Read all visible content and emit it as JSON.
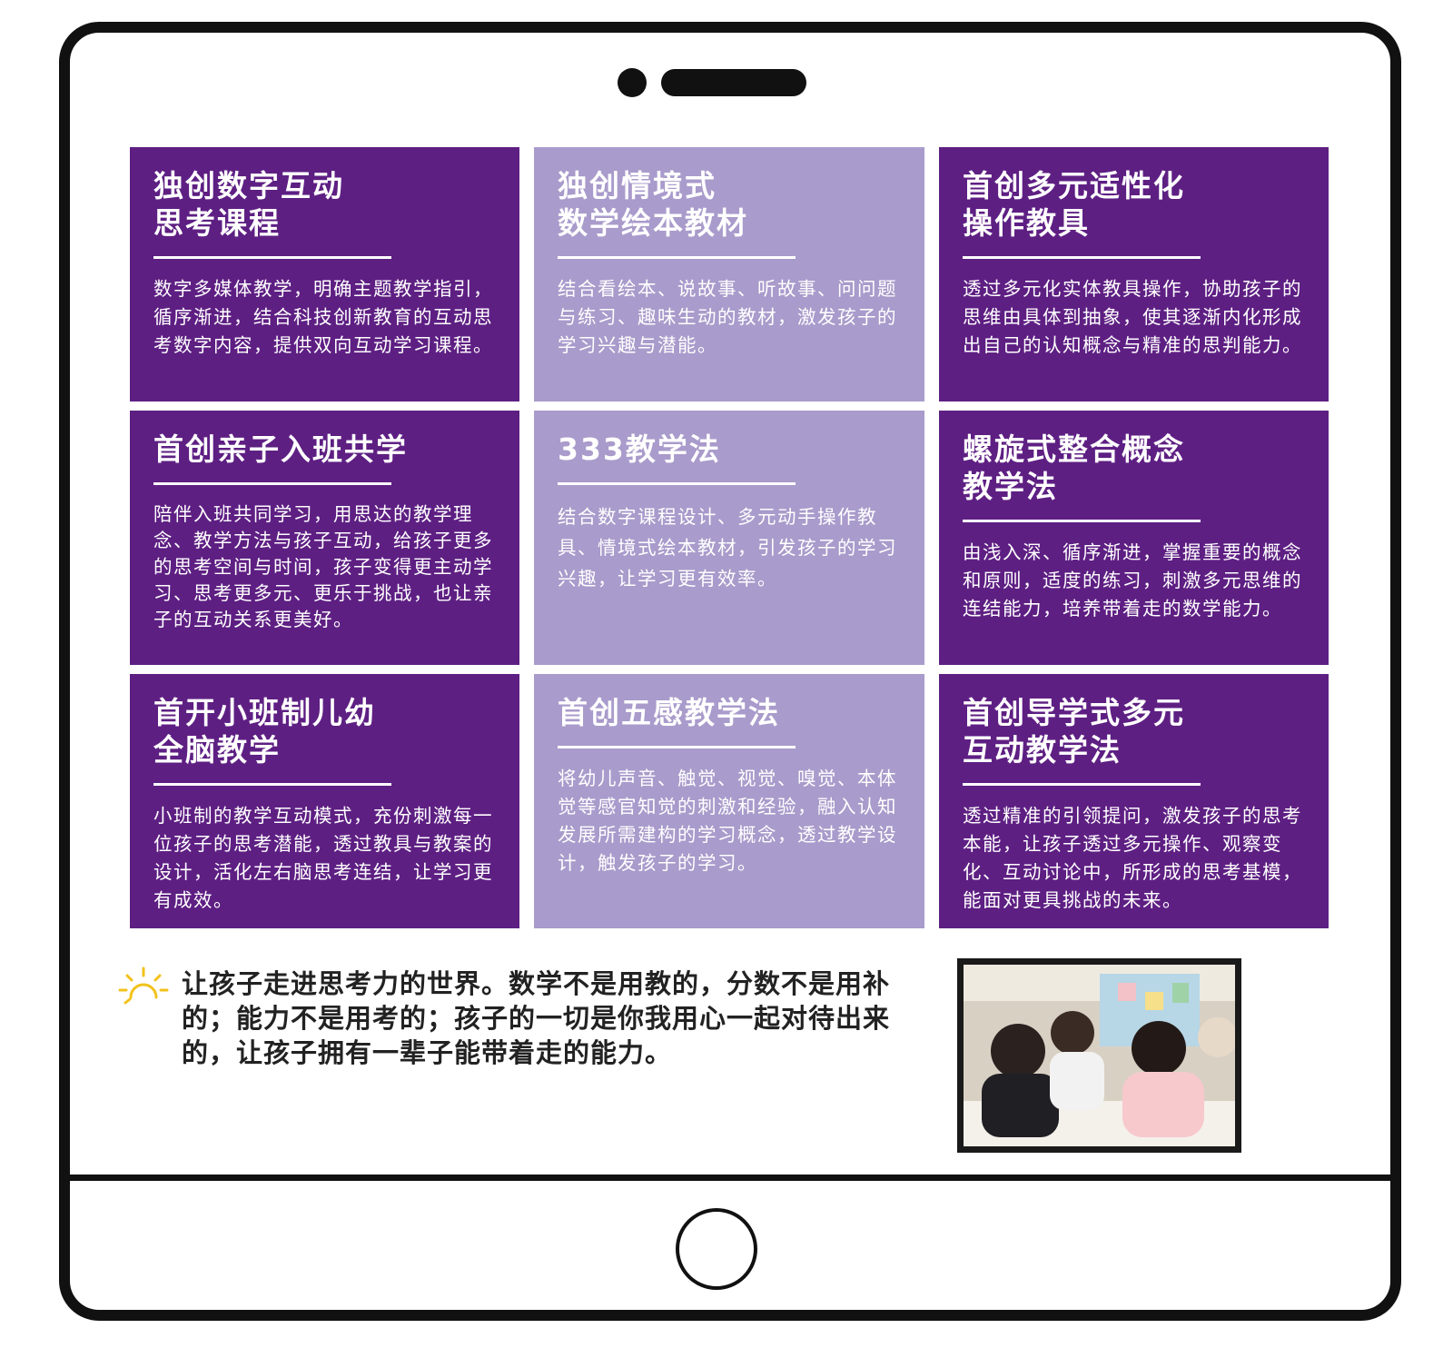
{
  "cards": [
    {
      "title": "独创数字互动\n思考课程",
      "body": "数字多媒体教学，明确主题教学指引，循序渐进，结合科技创新教育的互动思考数字内容，提供双向互动学习课程。"
    },
    {
      "title": "独创情境式\n数学绘本教材",
      "body": "结合看绘本、说故事、听故事、问问题与练习、趣味生动的教材，激发孩子的学习兴趣与潜能。"
    },
    {
      "title": "首创多元适性化\n操作教具",
      "body": "透过多元化实体教具操作，协助孩子的思维由具体到抽象，使其逐渐内化形成出自己的认知概念与精准的思判能力。"
    },
    {
      "title": "首创亲子入班共学",
      "body": "陪伴入班共同学习，用思达的教学理念、教学方法与孩子互动，给孩子更多的思考空间与时间，孩子变得更主动学习、思考更多元、更乐于挑战，也让亲子的互动关系更美好。"
    },
    {
      "title": "333教学法",
      "body": "结合数字课程设计、多元动手操作教具、情境式绘本教材，引发孩子的学习兴趣，让学习更有效率。"
    },
    {
      "title": "螺旋式整合概念\n教学法",
      "body": "由浅入深、循序渐进，掌握重要的概念和原则，适度的练习，刺激多元思维的连结能力，培养带着走的数学能力。"
    },
    {
      "title": "首开小班制儿幼\n全脑教学",
      "body": "小班制的教学互动模式，充份刺激每一位孩子的思考潜能，透过教具与教案的设计，活化左右脑思考连结，让学习更有成效。"
    },
    {
      "title": "首创五感教学法",
      "body": "将幼儿声音、触觉、视觉、嗅觉、本体觉等感官知觉的刺激和经验，融入认知发展所需建构的学习概念，透过教学设计，触发孩子的学习。"
    },
    {
      "title": "首创导学式多元\n互动教学法",
      "body": "透过精准的引领提问，激发孩子的思考本能，让孩子透过多元操作、观察变化、互动讨论中，所形成的思考基模，能面对更具挑战的未来。"
    }
  ],
  "quote": "让孩子走进思考力的世界。数学不是用教的，分数不是用补的；能力不是用考的；孩子的一切是你我用心一起对待出来的，让孩子拥有一辈子能带着走的能力。",
  "icons": {
    "sun": "sun-icon",
    "photo": "classroom-photo"
  },
  "colors": {
    "card_dark": "#5e1f83",
    "card_light": "#a99bcb",
    "sun": "#f2c21b"
  }
}
